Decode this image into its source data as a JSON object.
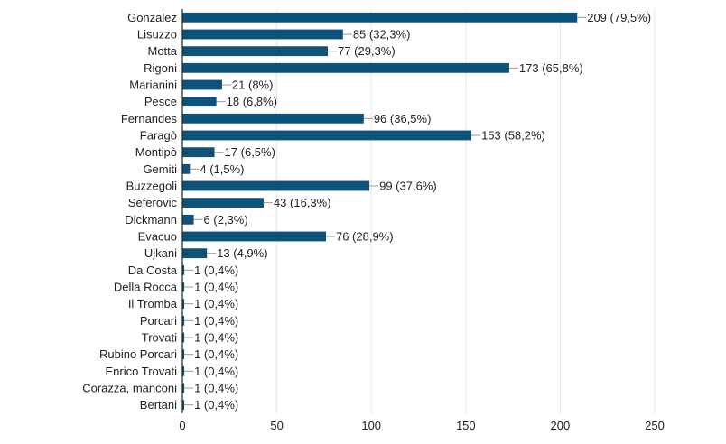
{
  "chart_data": {
    "type": "bar",
    "orientation": "horizontal",
    "title": "",
    "xlabel": "",
    "ylabel": "",
    "xlim": [
      0,
      250
    ],
    "xticks": [
      0,
      50,
      100,
      150,
      200,
      250
    ],
    "grid": true,
    "bar_color": "#0f5279",
    "categories": [
      "Gonzalez",
      "Lisuzzo",
      "Motta",
      "Rigoni",
      "Marianini",
      "Pesce",
      "Fernandes",
      "Faragò",
      "Montipò",
      "Gemiti",
      "Buzzegoli",
      "Seferovic",
      "Dickmann",
      "Evacuo",
      "Ujkani",
      "Da Costa",
      "Della Rocca",
      "Il Tromba",
      "Porcari",
      "Trovati",
      "Rubino Porcari",
      "Enrico Trovati",
      "Corazza, manconi",
      "Bertani"
    ],
    "values": [
      209,
      85,
      77,
      173,
      21,
      18,
      96,
      153,
      17,
      4,
      99,
      43,
      6,
      76,
      13,
      1,
      1,
      1,
      1,
      1,
      1,
      1,
      1,
      1
    ],
    "data_labels": [
      "209 (79,5%)",
      "85 (32,3%)",
      "77 (29,3%)",
      "173 (65,8%)",
      "21 (8%)",
      "18 (6,8%)",
      "96 (36,5%)",
      "153 (58,2%)",
      "17 (6,5%)",
      "4 (1,5%)",
      "99 (37,6%)",
      "43 (16,3%)",
      "6 (2,3%)",
      "76 (28,9%)",
      "13 (4,9%)",
      "1 (0,4%)",
      "1 (0,4%)",
      "1 (0,4%)",
      "1 (0,4%)",
      "1 (0,4%)",
      "1 (0,4%)",
      "1 (0,4%)",
      "1 (0,4%)",
      "1 (0,4%)"
    ]
  }
}
